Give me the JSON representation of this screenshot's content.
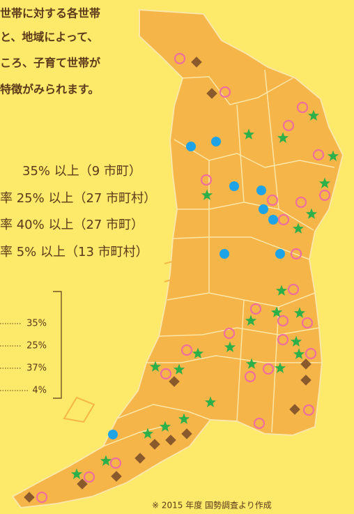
{
  "intro": {
    "lines": [
      "世帯に対する各世帯",
      "と、地域によって、",
      "ころ、子育て世帯が",
      "特徴がみられます。"
    ]
  },
  "legend": {
    "items": [
      "35% 以上（9 市町）",
      "率 25% 以上（27 市町村）",
      "率 40% 以上（27 市町）",
      "率 5% 以上（13 市町村）"
    ]
  },
  "summary": {
    "values": [
      "35%",
      "25%",
      "37%",
      "4%"
    ]
  },
  "footnote": "※ 2015 年度 国勢調査より作成"
}
